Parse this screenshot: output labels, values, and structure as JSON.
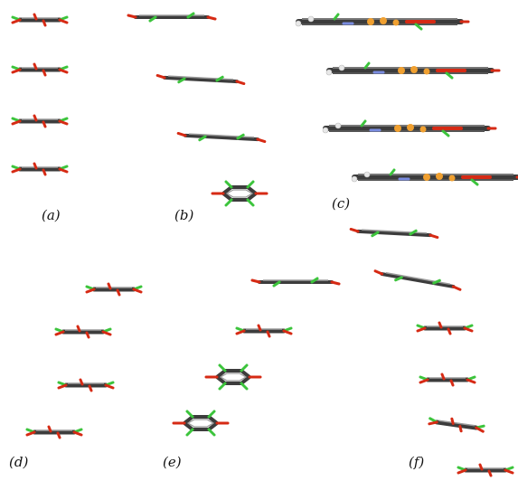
{
  "panels": [
    {
      "id": "a",
      "label": "(a)"
    },
    {
      "id": "b",
      "label": "(b)"
    },
    {
      "id": "c",
      "label": "(c)"
    },
    {
      "id": "d",
      "label": "(d)"
    },
    {
      "id": "e",
      "label": "(e)"
    },
    {
      "id": "f",
      "label": "(f)"
    }
  ],
  "colors": {
    "carbon": "#3c3c3c",
    "carbon_light": "#9a9a9a",
    "oxygen": "#d62a14",
    "chlorine": "#3cc43c",
    "phosphorus": "#f0a030",
    "nitrogen": "#7a8ce0",
    "hydrogen": "#e8e8e8"
  }
}
